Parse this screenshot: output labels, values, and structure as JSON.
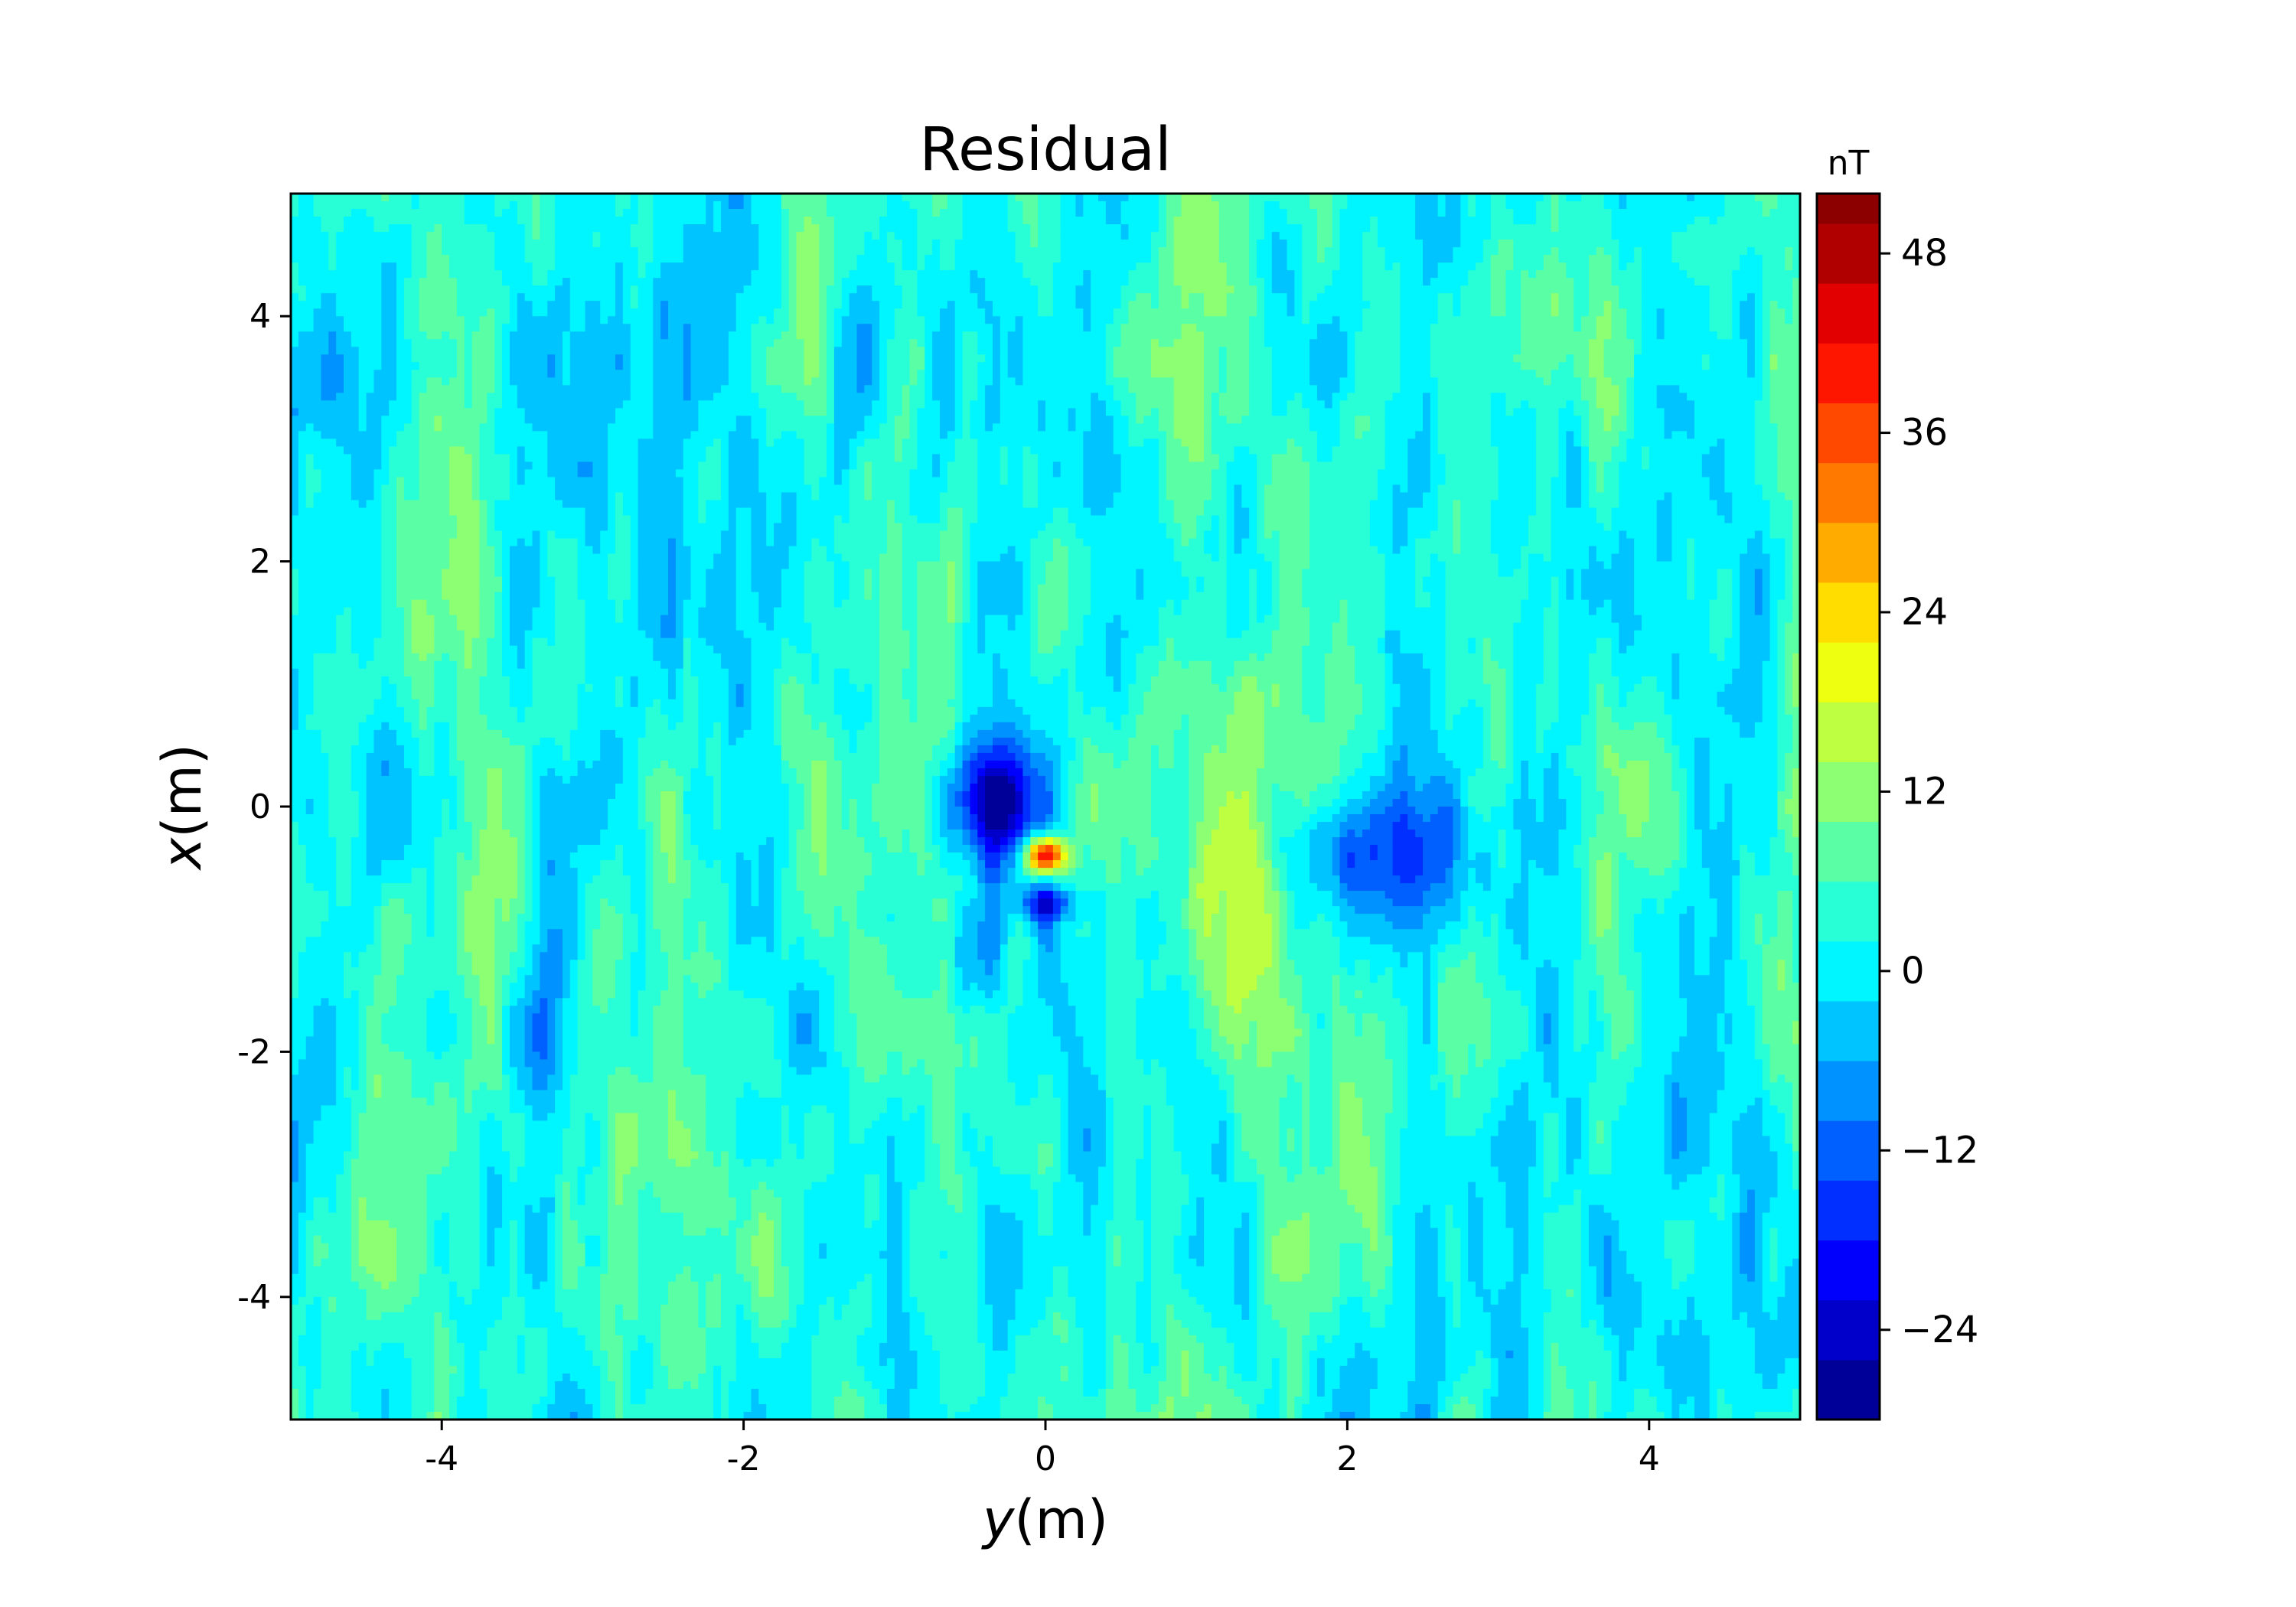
{
  "chart_data": {
    "type": "heatmap",
    "title": "Residual",
    "xlabel": {
      "var": "y",
      "unit": "(m)"
    },
    "ylabel": {
      "var": "x",
      "unit": "(m)"
    },
    "xlim": [
      -5,
      5
    ],
    "ylim": [
      -5,
      5
    ],
    "x_ticks": [
      -4,
      -2,
      0,
      2,
      4
    ],
    "y_ticks": [
      4,
      2,
      0,
      -2,
      -4
    ],
    "x_tick_labels": [
      "-4",
      "-2",
      "0",
      "2",
      "4"
    ],
    "y_tick_labels": [
      "4",
      "2",
      "0",
      "-2",
      "-4"
    ],
    "grid": false,
    "colormap": "jet",
    "colorbar": {
      "unit": "nT",
      "min": -30,
      "max": 52,
      "levels": [
        -30,
        -26,
        -22,
        -18,
        -14,
        -10,
        -6,
        -2,
        2,
        6,
        10,
        14,
        18,
        22,
        26,
        30,
        34,
        38,
        42,
        46,
        50,
        52
      ],
      "ticks": [
        48,
        36,
        24,
        12,
        0,
        -12,
        -24
      ],
      "tick_labels": [
        "48",
        "36",
        "24",
        "12",
        "0",
        "−12",
        "−24"
      ]
    },
    "features": [
      {
        "y": 0.0,
        "x": -0.4,
        "value": 50,
        "shape": "peak"
      },
      {
        "y": -0.4,
        "x": 0.0,
        "value": -26,
        "shape": "trough"
      },
      {
        "y": 0.0,
        "x": -0.8,
        "value": -20,
        "shape": "trough"
      },
      {
        "y": 1.25,
        "x": -0.8,
        "value": 18,
        "shape": "ridge"
      },
      {
        "y": 2.4,
        "x": -0.4,
        "value": -16,
        "shape": "trough"
      },
      {
        "y": -3.3,
        "x": -1.8,
        "value": -12,
        "shape": "streak"
      },
      {
        "y": -4.8,
        "x": 3.4,
        "value": -8,
        "shape": "patch"
      },
      {
        "y": 3.4,
        "x": 4.2,
        "value": 10,
        "shape": "streak"
      },
      {
        "y": -1.0,
        "x": 1.5,
        "value": 10,
        "shape": "streak"
      }
    ]
  }
}
